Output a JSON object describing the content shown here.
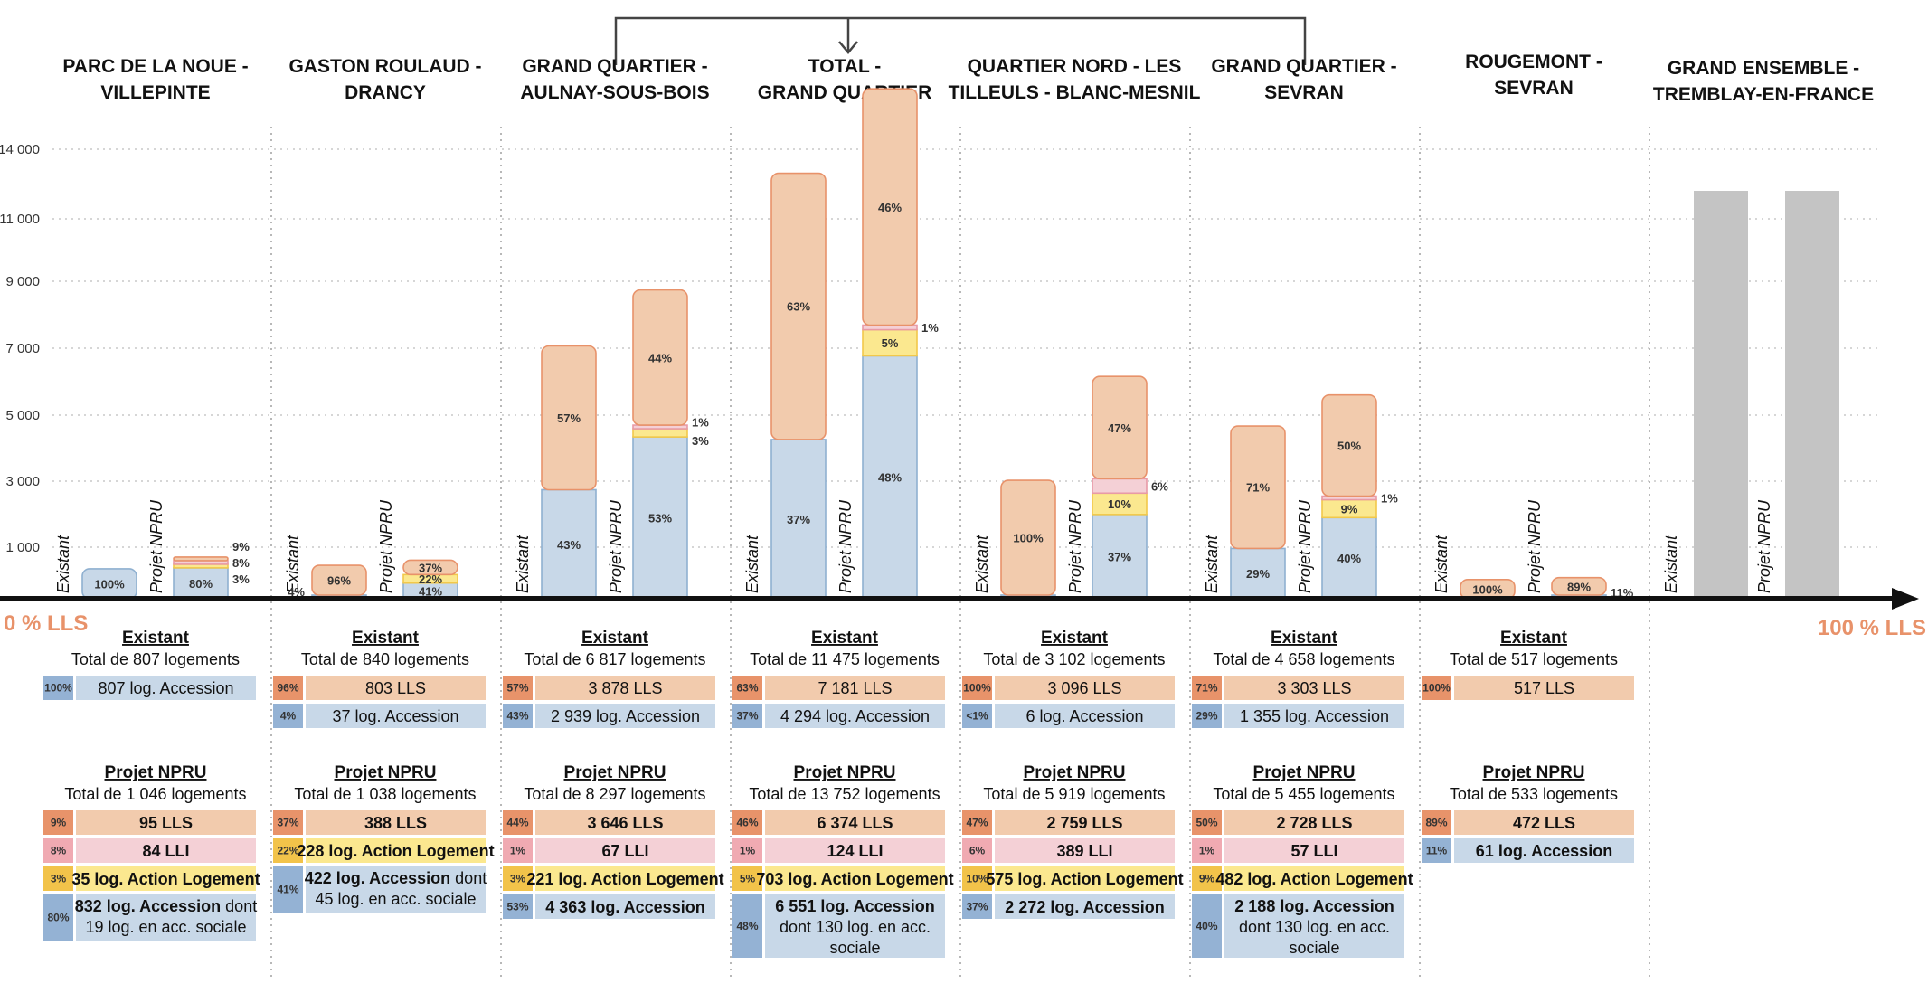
{
  "colors": {
    "lls": "#f2cbad",
    "lls_edge": "#e8926a",
    "lls_dark": "#e8936a",
    "lli": "#f4d0d6",
    "lli_edge": "#e89aa6",
    "lli_dark": "#f0aab2",
    "al": "#fbe88f",
    "al_edge": "#f2c84a",
    "al_dark": "#f2c34a",
    "acc": "#c8d8e8",
    "acc_edge": "#8fb0d0",
    "acc_dark": "#94b2d4",
    "grey": "#c4c4c4",
    "axis": "#111111",
    "accent": "#e8926a"
  },
  "axis_labels": {
    "left": "0 % LLS",
    "right": "100 % LLS"
  },
  "bar_labels": {
    "existant": "Existant",
    "projet": "Projet NPRU"
  },
  "chart_data": {
    "type": "bar",
    "stacked": true,
    "categories_order": [
      "PARC DE LA NOUE - VILLEPINTE",
      "GASTON ROULAUD - DRANCY",
      "GRAND QUARTIER - AULNAY-SOUS-BOIS",
      "TOTAL - GRAND QUARTIER",
      "QUARTIER NORD - LES TILLEULS - BLANC-MESNIL",
      "GRAND QUARTIER - SEVRAN",
      "ROUGEMONT - SEVRAN",
      "GRAND ENSEMBLE - TREMBLAY-EN-FRANCE"
    ],
    "stack_order": [
      "Accession",
      "Action Logement",
      "LLI",
      "LLS"
    ],
    "y_ticks": [
      1000,
      3000,
      5000,
      7000,
      9000,
      11000,
      14000
    ],
    "y_tick_labels": [
      "1 000",
      "3 000",
      "5 000",
      "7 000",
      "9 000",
      "11 000",
      "14 000"
    ],
    "grid": true,
    "groups": [
      {
        "title_lines": [
          "PARC DE LA NOUE -",
          "VILLEPINTE"
        ],
        "existant": {
          "total": 807,
          "segments": {
            "Accession": 807,
            "Action Logement": 0,
            "LLI": 0,
            "LLS": 0
          },
          "labels": [
            {
              "text": "100%",
              "seg": "Accession",
              "pos": "inside"
            }
          ]
        },
        "projet": {
          "total": 1046,
          "segments": {
            "Accession": 832,
            "Action Logement": 35,
            "LLI": 84,
            "LLS": 95
          },
          "labels": [
            {
              "text": "80%",
              "seg": "Accession",
              "pos": "inside"
            },
            {
              "text": "9%",
              "seg": "LLS",
              "pos": "side",
              "off": -1
            },
            {
              "text": "8%",
              "seg": "LLI",
              "pos": "side",
              "off": 0
            },
            {
              "text": "3%",
              "seg": "Action Logement",
              "pos": "side",
              "off": 1
            }
          ]
        }
      },
      {
        "title_lines": [
          "GASTON ROULAUD -",
          "DRANCY"
        ],
        "existant": {
          "total": 840,
          "segments": {
            "Accession": 37,
            "Action Logement": 0,
            "LLI": 0,
            "LLS": 803
          },
          "labels": [
            {
              "text": "96%",
              "seg": "LLS",
              "pos": "inside"
            },
            {
              "text": "4%",
              "seg": "Accession",
              "pos": "left"
            }
          ]
        },
        "projet": {
          "total": 1038,
          "segments": {
            "Accession": 422,
            "Action Logement": 228,
            "LLI": 0,
            "LLS": 388
          },
          "labels": [
            {
              "text": "41%",
              "seg": "Accession",
              "pos": "inside"
            },
            {
              "text": "22%",
              "seg": "Action Logement",
              "pos": "inside"
            },
            {
              "text": "37%",
              "seg": "LLS",
              "pos": "inside"
            }
          ]
        }
      },
      {
        "title_lines": [
          "GRAND QUARTIER -",
          "AULNAY-SOUS-BOIS"
        ],
        "existant": {
          "total": 6817,
          "segments": {
            "Accession": 2939,
            "Action Logement": 0,
            "LLI": 0,
            "LLS": 3878
          },
          "labels": [
            {
              "text": "43%",
              "seg": "Accession",
              "pos": "inside"
            },
            {
              "text": "57%",
              "seg": "LLS",
              "pos": "inside"
            }
          ]
        },
        "projet": {
          "total": 8297,
          "segments": {
            "Accession": 4363,
            "Action Logement": 221,
            "LLI": 67,
            "LLS": 3646
          },
          "labels": [
            {
              "text": "53%",
              "seg": "Accession",
              "pos": "inside"
            },
            {
              "text": "44%",
              "seg": "LLS",
              "pos": "inside"
            },
            {
              "text": "1%",
              "seg": "LLI",
              "pos": "side",
              "off": -0.4
            },
            {
              "text": "3%",
              "seg": "Action Logement",
              "pos": "side",
              "off": 0.6
            }
          ]
        }
      },
      {
        "title_lines": [
          "TOTAL -",
          "GRAND QUARTIER"
        ],
        "existant": {
          "total": 11475,
          "segments": {
            "Accession": 4294,
            "Action Logement": 0,
            "LLI": 0,
            "LLS": 7181
          },
          "labels": [
            {
              "text": "37%",
              "seg": "Accession",
              "pos": "inside"
            },
            {
              "text": "63%",
              "seg": "LLS",
              "pos": "inside"
            }
          ]
        },
        "projet": {
          "total": 13752,
          "segments": {
            "Accession": 6551,
            "Action Logement": 703,
            "LLI": 124,
            "LLS": 6374
          },
          "labels": [
            {
              "text": "48%",
              "seg": "Accession",
              "pos": "inside"
            },
            {
              "text": "5%",
              "seg": "Action Logement",
              "pos": "inside"
            },
            {
              "text": "46%",
              "seg": "LLS",
              "pos": "inside"
            },
            {
              "text": "1%",
              "seg": "LLI",
              "pos": "side",
              "off": 0
            }
          ]
        }
      },
      {
        "title_lines": [
          "QUARTIER NORD - LES",
          "TILLEULS - BLANC-MESNIL"
        ],
        "existant": {
          "total": 3102,
          "segments": {
            "Accession": 6,
            "Action Logement": 0,
            "LLI": 0,
            "LLS": 3096
          },
          "labels": [
            {
              "text": "100%",
              "seg": "LLS",
              "pos": "inside"
            }
          ]
        },
        "projet": {
          "total": 5919,
          "segments": {
            "Accession": 2272,
            "Action Logement": 575,
            "LLI": 389,
            "LLS": 2759
          },
          "labels": [
            {
              "text": "37%",
              "seg": "Accession",
              "pos": "inside"
            },
            {
              "text": "10%",
              "seg": "Action Logement",
              "pos": "inside"
            },
            {
              "text": "47%",
              "seg": "LLS",
              "pos": "inside"
            },
            {
              "text": "6%",
              "seg": "LLI",
              "pos": "side",
              "off": 0
            }
          ]
        }
      },
      {
        "title_lines": [
          "GRAND QUARTIER -",
          "SEVRAN"
        ],
        "existant": {
          "total": 4658,
          "segments": {
            "Accession": 1355,
            "Action Logement": 0,
            "LLI": 0,
            "LLS": 3303
          },
          "labels": [
            {
              "text": "29%",
              "seg": "Accession",
              "pos": "inside"
            },
            {
              "text": "71%",
              "seg": "LLS",
              "pos": "inside"
            }
          ]
        },
        "projet": {
          "total": 5455,
          "segments": {
            "Accession": 2188,
            "Action Logement": 482,
            "LLI": 57,
            "LLS": 2728
          },
          "labels": [
            {
              "text": "40%",
              "seg": "Accession",
              "pos": "inside"
            },
            {
              "text": "9%",
              "seg": "Action Logement",
              "pos": "inside"
            },
            {
              "text": "50%",
              "seg": "LLS",
              "pos": "inside"
            },
            {
              "text": "1%",
              "seg": "LLI",
              "pos": "side",
              "off": 0
            }
          ]
        }
      },
      {
        "title_lines": [
          "ROUGEMONT -",
          "SEVRAN"
        ],
        "existant": {
          "total": 517,
          "segments": {
            "Accession": 0,
            "Action Logement": 0,
            "LLI": 0,
            "LLS": 517
          },
          "labels": [
            {
              "text": "100%",
              "seg": "LLS",
              "pos": "inside"
            }
          ]
        },
        "projet": {
          "total": 533,
          "segments": {
            "Accession": 61,
            "Action Logement": 0,
            "LLI": 0,
            "LLS": 472
          },
          "labels": [
            {
              "text": "89%",
              "seg": "LLS",
              "pos": "inside"
            },
            {
              "text": "11%",
              "seg": "Accession",
              "pos": "side",
              "off": 0
            }
          ]
        }
      },
      {
        "title_lines": [
          "GRAND ENSEMBLE -",
          "TREMBLAY-EN-FRANCE"
        ],
        "existant": {
          "grey": true,
          "total_bar": 11000
        },
        "projet": {
          "grey": true,
          "total_bar": 11000
        }
      }
    ]
  },
  "tables": [
    {
      "existant": {
        "heading": "Existant",
        "total": "Total de 807 logements",
        "rows": [
          {
            "pct": "100%",
            "text": "807 log. Accession",
            "type": "acc",
            "bold": false
          }
        ]
      },
      "projet": {
        "heading": "Projet NPRU",
        "total": "Total de 1 046 logements",
        "rows": [
          {
            "pct": "9%",
            "text": "95 LLS",
            "type": "lls",
            "bold": true
          },
          {
            "pct": "8%",
            "text": "84 LLI",
            "type": "lli",
            "bold": true
          },
          {
            "pct": "3%",
            "text": "35 log. Action Logement",
            "type": "al",
            "bold": true
          },
          {
            "pct": "80%",
            "lines": [
              "832 log. Accession dont",
              "19 log. en acc. sociale"
            ],
            "type": "acc",
            "bold_prefix": "832 log. Accession"
          }
        ]
      }
    },
    {
      "existant": {
        "heading": "Existant",
        "total": "Total de 840 logements",
        "rows": [
          {
            "pct": "96%",
            "text": "803 LLS",
            "type": "lls",
            "bold": false
          },
          {
            "pct": "4%",
            "text": "37 log. Accession",
            "type": "acc",
            "bold": false
          }
        ]
      },
      "projet": {
        "heading": "Projet NPRU",
        "total": "Total de 1 038 logements",
        "rows": [
          {
            "pct": "37%",
            "text": "388 LLS",
            "type": "lls",
            "bold": true
          },
          {
            "pct": "22%",
            "text": "228 log. Action Logement",
            "type": "al",
            "bold": true
          },
          {
            "pct": "41%",
            "lines": [
              "422 log. Accession dont",
              "45 log. en acc. sociale"
            ],
            "type": "acc",
            "bold_prefix": "422 log. Accession"
          }
        ]
      }
    },
    {
      "existant": {
        "heading": "Existant",
        "total": "Total de 6 817 logements",
        "rows": [
          {
            "pct": "57%",
            "text": "3 878 LLS",
            "type": "lls",
            "bold": false
          },
          {
            "pct": "43%",
            "text": "2 939 log. Accession",
            "type": "acc",
            "bold": false
          }
        ]
      },
      "projet": {
        "heading": "Projet NPRU",
        "total": "Total de 8 297 logements",
        "rows": [
          {
            "pct": "44%",
            "text": "3 646 LLS",
            "type": "lls",
            "bold": true
          },
          {
            "pct": "1%",
            "text": "67 LLI",
            "type": "lli",
            "bold": true
          },
          {
            "pct": "3%",
            "text": "221 log. Action Logement",
            "type": "al",
            "bold": true
          },
          {
            "pct": "53%",
            "text": "4 363 log. Accession",
            "type": "acc",
            "bold": true
          }
        ]
      }
    },
    {
      "existant": {
        "heading": "Existant",
        "total": "Total de 11 475 logements",
        "rows": [
          {
            "pct": "63%",
            "text": "7 181 LLS",
            "type": "lls",
            "bold": false
          },
          {
            "pct": "37%",
            "text": "4 294 log. Accession",
            "type": "acc",
            "bold": false
          }
        ]
      },
      "projet": {
        "heading": "Projet NPRU",
        "total": "Total de 13 752 logements",
        "rows": [
          {
            "pct": "46%",
            "text": "6 374 LLS",
            "type": "lls",
            "bold": true
          },
          {
            "pct": "1%",
            "text": "124 LLI",
            "type": "lli",
            "bold": true
          },
          {
            "pct": "5%",
            "text": "703 log. Action Logement",
            "type": "al",
            "bold": true
          },
          {
            "pct": "48%",
            "lines": [
              "6 551 log. Accession",
              "dont 130 log. en acc.",
              "sociale"
            ],
            "type": "acc",
            "bold_prefix": "6 551 log. Accession"
          }
        ]
      }
    },
    {
      "existant": {
        "heading": "Existant",
        "total": "Total de 3 102 logements",
        "rows": [
          {
            "pct": "100%",
            "text": "3 096 LLS",
            "type": "lls",
            "bold": false
          },
          {
            "pct": "<1%",
            "text": "6 log. Accession",
            "type": "acc",
            "bold": false
          }
        ]
      },
      "projet": {
        "heading": "Projet NPRU",
        "total": "Total de 5 919 logements",
        "rows": [
          {
            "pct": "47%",
            "text": "2 759 LLS",
            "type": "lls",
            "bold": true
          },
          {
            "pct": "6%",
            "text": "389 LLI",
            "type": "lli",
            "bold": true
          },
          {
            "pct": "10%",
            "text": "575 log. Action Logement",
            "type": "al",
            "bold": true
          },
          {
            "pct": "37%",
            "text": "2 272 log. Accession",
            "type": "acc",
            "bold": true
          }
        ]
      }
    },
    {
      "existant": {
        "heading": "Existant",
        "total": "Total de 4 658 logements",
        "rows": [
          {
            "pct": "71%",
            "text": "3 303 LLS",
            "type": "lls",
            "bold": false
          },
          {
            "pct": "29%",
            "text": "1 355 log. Accession",
            "type": "acc",
            "bold": false
          }
        ]
      },
      "projet": {
        "heading": "Projet NPRU",
        "total": "Total de 5 455 logements",
        "rows": [
          {
            "pct": "50%",
            "text": "2 728 LLS",
            "type": "lls",
            "bold": true
          },
          {
            "pct": "1%",
            "text": "57 LLI",
            "type": "lli",
            "bold": true
          },
          {
            "pct": "9%",
            "text": "482 log. Action Logement",
            "type": "al",
            "bold": true
          },
          {
            "pct": "40%",
            "lines": [
              "2 188 log. Accession",
              "dont 130 log. en acc.",
              "sociale"
            ],
            "type": "acc",
            "bold_prefix": "2 188 log. Accession"
          }
        ]
      }
    },
    {
      "existant": {
        "heading": "Existant",
        "total": "Total de 517 logements",
        "rows": [
          {
            "pct": "100%",
            "text": "517 LLS",
            "type": "lls",
            "bold": false
          }
        ]
      },
      "projet": {
        "heading": "Projet NPRU",
        "total": "Total de 533 logements",
        "rows": [
          {
            "pct": "89%",
            "text": "472 LLS",
            "type": "lls",
            "bold": true
          },
          {
            "pct": "11%",
            "text": "61 log. Accession",
            "type": "acc",
            "bold": true
          }
        ]
      }
    },
    null
  ]
}
